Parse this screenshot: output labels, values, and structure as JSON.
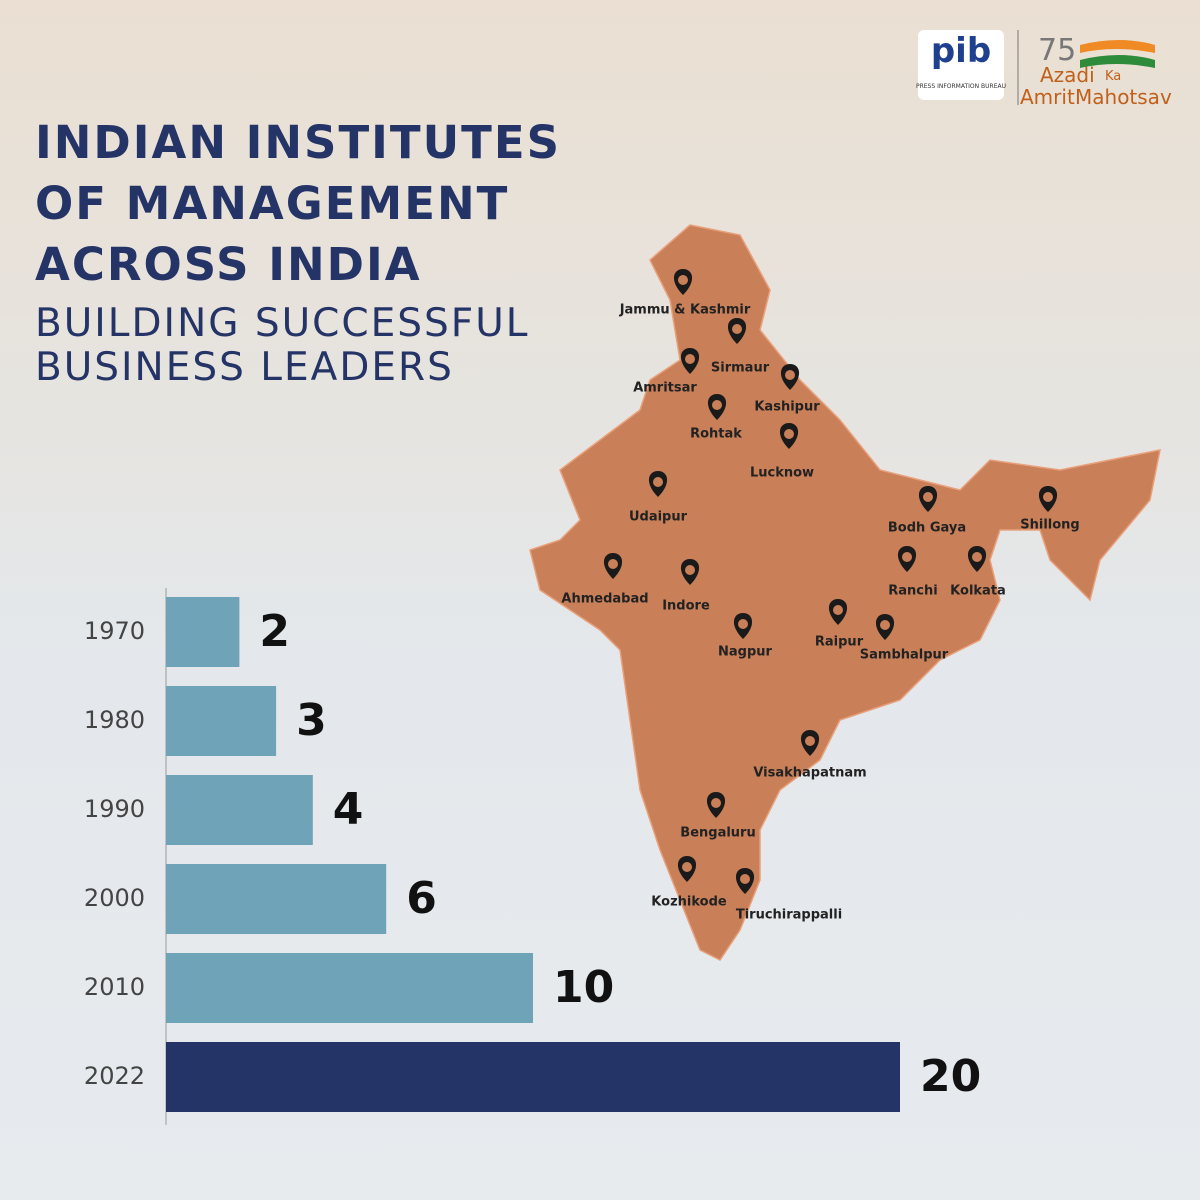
{
  "chart_data": {
    "type": "bar",
    "orientation": "horizontal",
    "title": "INDIAN INSTITUTES OF MANAGEMENT ACROSS INDIA",
    "subtitle": "BUILDING SUCCESSFUL BUSINESS LEADERS",
    "categories": [
      "1970",
      "1980",
      "1990",
      "2000",
      "2010",
      "2022"
    ],
    "values": [
      2,
      3,
      4,
      6,
      10,
      20
    ],
    "colors": [
      "#6fa3b8",
      "#6fa3b8",
      "#6fa3b8",
      "#6fa3b8",
      "#6fa3b8",
      "#253466"
    ],
    "xlim": [
      0,
      20
    ]
  },
  "map": {
    "cities": [
      "Jammu & Kashmir",
      "Sirmaur",
      "Amritsar",
      "Kashipur",
      "Rohtak",
      "Lucknow",
      "Udaipur",
      "Bodh Gaya",
      "Shillong",
      "Ahmedabad",
      "Indore",
      "Ranchi",
      "Kolkata",
      "Raipur",
      "Sambhalpur",
      "Nagpur",
      "Visakhapatnam",
      "Bengaluru",
      "Kozhikode",
      "Tiruchirappalli"
    ]
  },
  "logos": {
    "pib": "pib",
    "pib_full": "PRESS INFORMATION BUREAU",
    "number": "75",
    "line1": "Azadi",
    "ka": "Ka",
    "line2": "Amrit",
    "line3": "Mahotsav"
  }
}
